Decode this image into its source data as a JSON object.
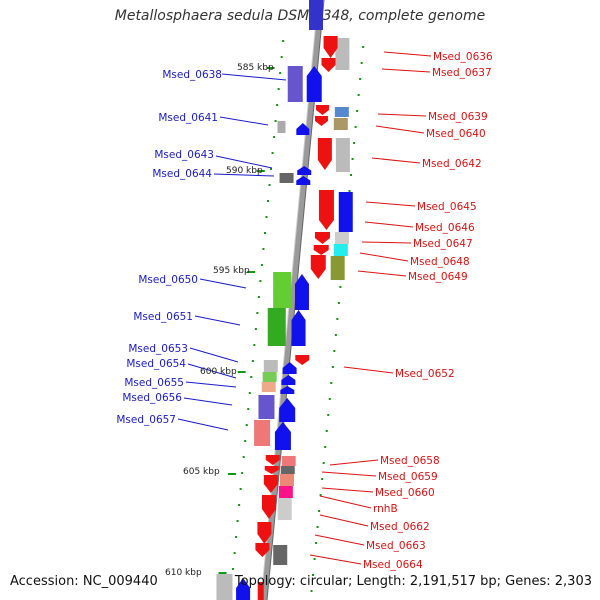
{
  "title": "Metallosphaera sedula DSM 5348, complete genome",
  "footer": {
    "accession": "Accession: NC_009440",
    "info": "Topology: circular; Length: 2,191,517 bp; Genes: 2,303"
  },
  "colors": {
    "backbone": "#8a8a8a",
    "left_label": "#1a1acc",
    "right_label": "#dd1111",
    "dots": "#119911"
  },
  "scale_labels": [
    {
      "text": "585 kbp",
      "kbp": 585
    },
    {
      "text": "590 kbp",
      "kbp": 590
    },
    {
      "text": "595 kbp",
      "kbp": 595
    },
    {
      "text": "600 kbp",
      "kbp": 600
    },
    {
      "text": "605 kbp",
      "kbp": 605
    },
    {
      "text": "610 kbp",
      "kbp": 610
    }
  ],
  "left_genes": [
    {
      "label": "Msed_0638"
    },
    {
      "label": "Msed_0641"
    },
    {
      "label": "Msed_0643"
    },
    {
      "label": "Msed_0644"
    },
    {
      "label": "Msed_0650"
    },
    {
      "label": "Msed_0651"
    },
    {
      "label": "Msed_0653"
    },
    {
      "label": "Msed_0654"
    },
    {
      "label": "Msed_0655"
    },
    {
      "label": "Msed_0656"
    },
    {
      "label": "Msed_0657"
    }
  ],
  "right_genes": [
    {
      "label": "Msed_0636"
    },
    {
      "label": "Msed_0637"
    },
    {
      "label": "Msed_0639"
    },
    {
      "label": "Msed_0640"
    },
    {
      "label": "Msed_0642"
    },
    {
      "label": "Msed_0645"
    },
    {
      "label": "Msed_0646"
    },
    {
      "label": "Msed_0647"
    },
    {
      "label": "Msed_0648"
    },
    {
      "label": "Msed_0649"
    },
    {
      "label": "Msed_0652"
    },
    {
      "label": "Msed_0658"
    },
    {
      "label": "Msed_0659"
    },
    {
      "label": "Msed_0660"
    },
    {
      "label": "rnhB"
    },
    {
      "label": "Msed_0662"
    },
    {
      "label": "Msed_0663"
    },
    {
      "label": "Msed_0664"
    }
  ]
}
